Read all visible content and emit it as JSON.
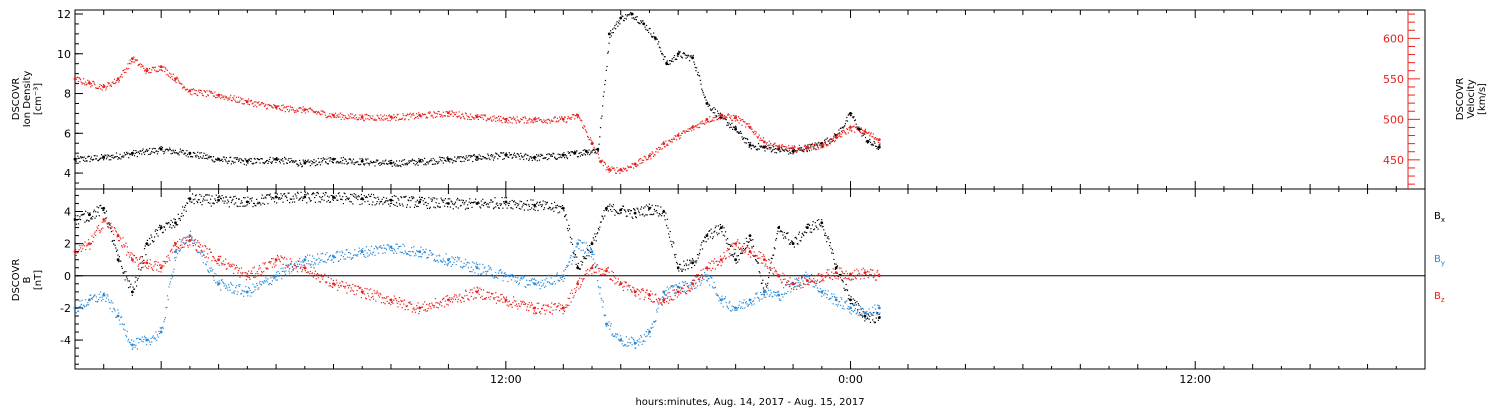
{
  "chart_data": [
    {
      "type": "scatter",
      "panel": "top",
      "ylabel_lines": [
        "DSCOVR",
        "Ion Density",
        "[cm⁻³]"
      ],
      "ylabel2_lines": [
        "DSCOVR",
        "Velocity",
        "[km/s]"
      ],
      "ylim": [
        3.2,
        12.2
      ],
      "yticks": [
        4,
        6,
        8,
        10,
        12
      ],
      "y2lim": [
        414,
        635
      ],
      "y2ticks": [
        450,
        500,
        550,
        600
      ],
      "colors": {
        "density": "#000000",
        "velocity": "#e8211d"
      },
      "series": [
        {
          "key": "density",
          "axis": "left",
          "color": "#000000",
          "x": [
            -3.0,
            -2.0,
            -1.0,
            0.0,
            1.0,
            2.0,
            3.0,
            4.0,
            5.0,
            6.0,
            7.0,
            8.0,
            9.0,
            10.0,
            11.0,
            12.0,
            13.0,
            14.0,
            14.4,
            14.8,
            15.2,
            15.6,
            16.0,
            16.4,
            16.8,
            17.2,
            17.6,
            18.0,
            18.5,
            19.0,
            19.5,
            20.0,
            20.5,
            21.0,
            21.5,
            22.0,
            22.5,
            23.0,
            23.5,
            24.0,
            24.3,
            24.6,
            25.0
          ],
          "y": [
            4.7,
            4.8,
            5.0,
            5.2,
            5.0,
            4.7,
            4.6,
            4.7,
            4.5,
            4.7,
            4.6,
            4.5,
            4.6,
            4.7,
            4.8,
            4.9,
            4.8,
            4.9,
            5.0,
            5.1,
            5.2,
            11.0,
            11.8,
            12.0,
            11.5,
            10.8,
            9.5,
            10.0,
            9.8,
            7.5,
            6.8,
            6.2,
            5.4,
            5.3,
            5.2,
            5.1,
            5.3,
            5.5,
            5.9,
            7.0,
            6.2,
            5.6,
            5.3
          ]
        },
        {
          "key": "velocity",
          "axis": "right",
          "color": "#e8211d",
          "x": [
            -3.0,
            -2.5,
            -2.0,
            -1.5,
            -1.0,
            -0.5,
            0.0,
            0.5,
            1.0,
            2.0,
            3.0,
            4.0,
            5.0,
            6.0,
            7.0,
            8.0,
            9.0,
            10.0,
            11.0,
            12.0,
            13.0,
            14.0,
            14.5,
            15.0,
            15.3,
            15.6,
            16.0,
            16.5,
            17.0,
            17.5,
            18.0,
            18.5,
            19.0,
            19.5,
            20.0,
            20.5,
            21.0,
            21.5,
            22.0,
            22.5,
            23.0,
            23.5,
            24.0,
            24.5,
            25.0
          ],
          "y": [
            550,
            545,
            540,
            550,
            575,
            560,
            565,
            550,
            535,
            530,
            522,
            515,
            512,
            505,
            503,
            503,
            505,
            508,
            503,
            500,
            500,
            500,
            505,
            470,
            448,
            438,
            438,
            445,
            455,
            470,
            480,
            490,
            500,
            505,
            502,
            490,
            472,
            466,
            464,
            466,
            468,
            478,
            490,
            485,
            475
          ]
        }
      ]
    },
    {
      "type": "scatter",
      "panel": "bottom",
      "ylabel_lines": [
        "DSCOVR",
        "B",
        "[nT]"
      ],
      "ylim": [
        -5.8,
        5.4
      ],
      "yticks": [
        -4,
        -2,
        0,
        2,
        4
      ],
      "xlabel": "hours:minutes, Aug. 14, 2017 - Aug. 15, 2017",
      "xlim": [
        -3.0,
        44.0
      ],
      "xticks": [
        {
          "x": 12.0,
          "label": "12:00"
        },
        {
          "x": 24.0,
          "label": "0:00"
        },
        {
          "x": 36.0,
          "label": "12:00"
        }
      ],
      "colors": {
        "Bx": "#000000",
        "By": "#2a8ad8",
        "Bz": "#e8211d"
      },
      "legend": [
        {
          "key": "Bx",
          "base": "B",
          "sub": "x",
          "color": "#000000"
        },
        {
          "key": "By",
          "base": "B",
          "sub": "y",
          "color": "#2a8ad8"
        },
        {
          "key": "Bz",
          "base": "B",
          "sub": "z",
          "color": "#e8211d"
        }
      ],
      "series": [
        {
          "key": "Bx",
          "color": "#000000",
          "x": [
            -3.0,
            -2.5,
            -2.0,
            -1.5,
            -1.0,
            -0.5,
            0.0,
            0.5,
            1.0,
            2.0,
            3.0,
            4.0,
            5.0,
            6.0,
            7.0,
            8.0,
            9.0,
            10.0,
            11.0,
            12.0,
            13.0,
            14.0,
            14.5,
            15.0,
            15.5,
            16.0,
            16.5,
            17.0,
            17.5,
            18.0,
            18.5,
            19.0,
            19.5,
            20.0,
            20.5,
            21.0,
            21.5,
            22.0,
            22.5,
            23.0,
            23.5,
            24.0,
            24.5,
            25.0
          ],
          "y": [
            3.5,
            3.8,
            4.2,
            1.0,
            -1.0,
            2.0,
            3.0,
            3.3,
            4.8,
            4.7,
            4.6,
            4.9,
            4.9,
            4.9,
            4.8,
            4.7,
            4.6,
            4.5,
            4.5,
            4.6,
            4.4,
            4.2,
            0.5,
            2.0,
            4.2,
            4.1,
            3.9,
            4.2,
            4.0,
            0.5,
            0.8,
            2.5,
            3.0,
            1.0,
            2.5,
            -1.0,
            3.0,
            2.0,
            3.0,
            3.3,
            0.5,
            -1.5,
            -2.5,
            -2.6
          ]
        },
        {
          "key": "By",
          "color": "#2a8ad8",
          "x": [
            -3.0,
            -2.5,
            -2.0,
            -1.5,
            -1.0,
            -0.5,
            0.0,
            0.5,
            1.0,
            2.0,
            3.0,
            4.0,
            5.0,
            6.0,
            7.0,
            8.0,
            9.0,
            10.0,
            11.0,
            12.0,
            13.0,
            14.0,
            14.5,
            15.0,
            15.5,
            16.0,
            16.5,
            17.0,
            17.5,
            18.0,
            18.5,
            19.0,
            19.5,
            20.0,
            20.5,
            21.0,
            21.5,
            22.0,
            22.5,
            23.0,
            23.5,
            24.0,
            24.5,
            25.0
          ],
          "y": [
            -2.0,
            -1.5,
            -1.2,
            -2.5,
            -4.3,
            -4.0,
            -3.5,
            1.5,
            2.5,
            -0.5,
            -1.0,
            0.0,
            1.0,
            1.2,
            1.5,
            1.8,
            1.5,
            1.0,
            0.5,
            0.0,
            -0.5,
            0.0,
            2.0,
            1.5,
            -3.0,
            -4.0,
            -4.2,
            -3.5,
            -1.0,
            -0.7,
            -0.5,
            0.0,
            -1.5,
            -2.0,
            -1.5,
            -1.0,
            -1.2,
            -0.5,
            0.0,
            -1.0,
            -1.5,
            -2.0,
            -2.3,
            -2.0
          ]
        },
        {
          "key": "Bz",
          "color": "#e8211d",
          "x": [
            -3.0,
            -2.5,
            -2.0,
            -1.5,
            -1.0,
            -0.5,
            0.0,
            0.5,
            1.0,
            2.0,
            3.0,
            4.0,
            5.0,
            6.0,
            7.0,
            8.0,
            9.0,
            10.0,
            11.0,
            12.0,
            13.0,
            14.0,
            14.5,
            15.0,
            15.5,
            16.0,
            16.5,
            17.0,
            17.5,
            18.0,
            18.5,
            19.0,
            19.5,
            20.0,
            20.5,
            21.0,
            21.5,
            22.0,
            22.5,
            23.0,
            23.5,
            24.0,
            24.5,
            25.0
          ],
          "y": [
            1.5,
            2.0,
            3.5,
            2.5,
            1.0,
            0.8,
            0.5,
            2.0,
            2.2,
            1.0,
            0.0,
            1.0,
            0.5,
            -0.5,
            -1.0,
            -1.5,
            -2.0,
            -1.5,
            -1.0,
            -1.5,
            -2.0,
            -2.0,
            -0.5,
            0.5,
            0.3,
            -0.5,
            -1.0,
            -1.2,
            -1.5,
            -1.0,
            -0.5,
            0.5,
            1.0,
            2.0,
            1.5,
            1.0,
            0.0,
            -0.5,
            -0.3,
            0.0,
            0.2,
            0.1,
            0.2,
            0.0
          ]
        }
      ]
    }
  ]
}
